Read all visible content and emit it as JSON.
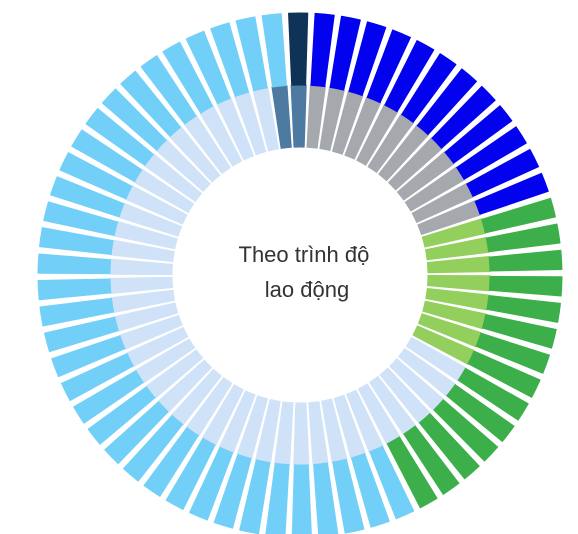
{
  "chart_data": {
    "type": "pie",
    "title": "Theo trình độ lao động",
    "title_lines": [
      "Theo trình độ",
      "lao động"
    ],
    "total_segments": 62,
    "inner_ring": {
      "series": [
        {
          "segments": 12,
          "color": "#a5a8ad"
        },
        {
          "segments": 8,
          "color": "#92cf5c"
        },
        {
          "segments": 40,
          "color": "#cfe2f8"
        },
        {
          "segments": 2,
          "color": "#4c7aa1"
        }
      ]
    },
    "outer_ring": {
      "series": [
        {
          "segments": 12,
          "color": "#0202ef"
        },
        {
          "segments": 14,
          "color": "#3daf4a"
        },
        {
          "segments": 35,
          "color": "#72cff7"
        },
        {
          "segments": 1,
          "color": "#0f3357"
        }
      ]
    }
  }
}
